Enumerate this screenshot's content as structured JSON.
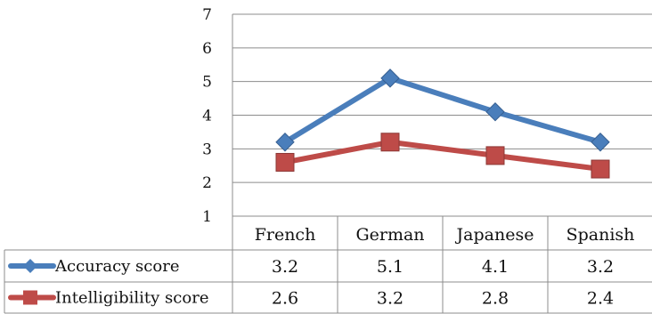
{
  "chart_data": {
    "type": "line",
    "categories": [
      "French",
      "German",
      "Japanese",
      "Spanish"
    ],
    "ylim": [
      1,
      7
    ],
    "yticks": [
      "1",
      "2",
      "3",
      "4",
      "5",
      "6",
      "7"
    ],
    "grid": true,
    "legend_placement": "data-table",
    "series": [
      {
        "name": "Accuracy score",
        "values": [
          3.2,
          5.1,
          4.1,
          3.2
        ],
        "value_labels": [
          "3.2",
          "5.1",
          "4.1",
          "3.2"
        ],
        "color": "#4a7ebb",
        "marker": "diamond"
      },
      {
        "name": "Intelligibility score",
        "values": [
          2.6,
          3.2,
          2.8,
          2.4
        ],
        "value_labels": [
          "2.6",
          "3.2",
          "2.8",
          "2.4"
        ],
        "color": "#be4b48",
        "marker": "square"
      }
    ]
  }
}
